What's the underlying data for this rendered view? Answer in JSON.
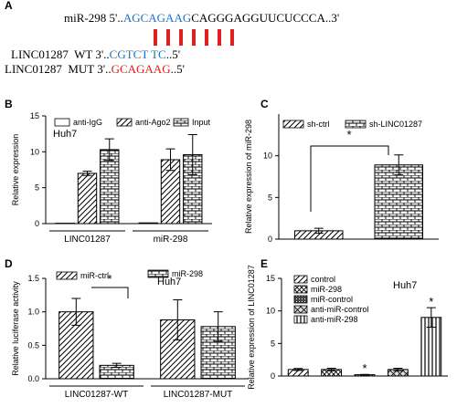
{
  "panel_a": {
    "label": "A",
    "mir": {
      "prefix": "miR-298 5'..",
      "seed": "AGCAGAAG",
      "suffix": "CAGGGAGGUUCUCCCA..3'"
    },
    "wt": {
      "prefix": "LINC01287  WT 3'..",
      "site": "CGTCT TC",
      "suffix": "..5'"
    },
    "mut": {
      "prefix": "LINC01287  MUT 3'..",
      "site": "GCAGAAG",
      "suffix": "..5'"
    }
  },
  "chart_data": [
    {
      "type": "bar",
      "panel": "B",
      "note": "Huh7",
      "ylabel": "Relative expression",
      "categories": [
        "LINC01287",
        "miR-298"
      ],
      "series": [
        {
          "name": "anti-IgG",
          "pattern": "none",
          "values": [
            0.05,
            0.1
          ],
          "errors": [
            0,
            0
          ]
        },
        {
          "name": "anti-Ago2",
          "pattern": "diagonal",
          "values": [
            7.0,
            8.9
          ],
          "errors": [
            0.3,
            1.5
          ]
        },
        {
          "name": "Input",
          "pattern": "brick",
          "values": [
            10.3,
            9.6
          ],
          "errors": [
            1.5,
            2.8
          ]
        }
      ],
      "ylim": [
        0,
        15
      ],
      "yticks": [
        0,
        5,
        10,
        15
      ]
    },
    {
      "type": "bar",
      "panel": "C",
      "ylabel": "Relative expression of miR-298",
      "series": [
        {
          "name": "sh-ctrl",
          "pattern": "diagonal",
          "values": [
            1.0
          ],
          "errors": [
            0.3
          ]
        },
        {
          "name": "sh-LINC01287",
          "pattern": "brick",
          "values": [
            8.9
          ],
          "errors": [
            1.2
          ]
        }
      ],
      "annotations": [
        "*"
      ],
      "ylim": [
        0,
        15
      ],
      "yticks": [
        0,
        5,
        10
      ]
    },
    {
      "type": "bar",
      "panel": "D",
      "note": "Huh7",
      "ylabel": "Relative luciferase activity",
      "categories": [
        "LINC01287-WT",
        "LINC01287-MUT"
      ],
      "series": [
        {
          "name": "miR-ctrl",
          "pattern": "diagonal",
          "values": [
            1.0,
            0.88
          ],
          "errors": [
            0.2,
            0.3
          ]
        },
        {
          "name": "miR-298",
          "pattern": "brick",
          "values": [
            0.2,
            0.78
          ],
          "errors": [
            0.03,
            0.22
          ]
        }
      ],
      "annotations": [
        "*"
      ],
      "ylim": [
        0,
        1.5
      ],
      "yticks": [
        {
          "value": 0,
          "label": "0.0"
        },
        {
          "value": 0.5,
          "label": "0.5"
        },
        {
          "value": 1,
          "label": "1.0"
        },
        {
          "value": 1.5,
          "label": "1.5"
        }
      ]
    },
    {
      "type": "bar",
      "panel": "E",
      "note": "Huh7",
      "ylabel": "Relative expression of LINC01287",
      "series": [
        {
          "name": "control",
          "pattern": "diagonal",
          "values": [
            1.0
          ],
          "errors": [
            0.15
          ]
        },
        {
          "name": "miR-298",
          "pattern": "cross",
          "values": [
            1.0
          ],
          "errors": [
            0.2
          ]
        },
        {
          "name": "miR-control",
          "pattern": "dark",
          "values": [
            0.2
          ],
          "errors": [
            0.05
          ]
        },
        {
          "name": "anti-miR-control",
          "pattern": "xcross",
          "values": [
            1.0
          ],
          "errors": [
            0.2
          ]
        },
        {
          "name": "anti-miR-298",
          "pattern": "vertical",
          "values": [
            9.0
          ],
          "errors": [
            1.5
          ]
        }
      ],
      "annotations": [
        "*",
        "*"
      ],
      "ylim": [
        0,
        15
      ],
      "yticks": [
        0,
        5,
        10,
        15
      ]
    }
  ]
}
